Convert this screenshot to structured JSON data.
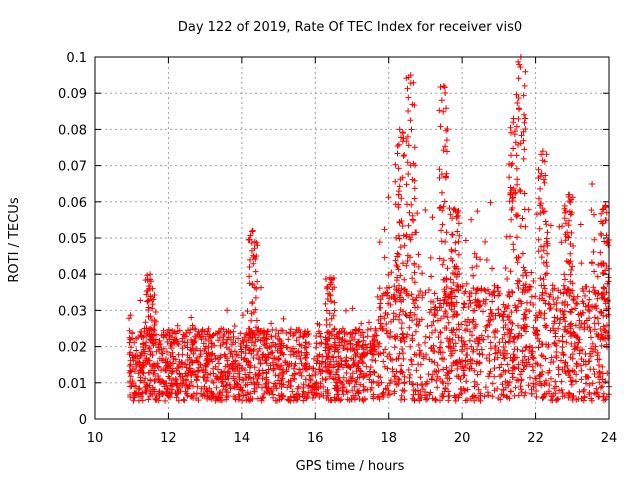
{
  "chart_data": {
    "type": "scatter",
    "title": "Day 122 of 2019, Rate Of TEC Index for receiver vis0",
    "xlabel": "GPS time / hours",
    "ylabel": "ROTI / TECUs",
    "xlim": [
      10,
      24
    ],
    "ylim": [
      0,
      0.1
    ],
    "xticks": [
      10,
      12,
      14,
      16,
      18,
      20,
      22,
      24
    ],
    "xtick_labels": [
      "10",
      "12",
      "14",
      "16",
      "18",
      "20",
      "22",
      "24"
    ],
    "yticks": [
      0,
      0.01,
      0.02,
      0.03,
      0.04,
      0.05,
      0.06,
      0.07,
      0.08,
      0.09,
      0.1
    ],
    "ytick_labels": [
      "0",
      "0.01",
      "0.02",
      "0.03",
      "0.04",
      "0.05",
      "0.06",
      "0.07",
      "0.08",
      "0.09",
      "0.1"
    ],
    "grid": true,
    "marker": "+",
    "color": "#ff0000",
    "series": [
      {
        "name": "ROTI",
        "x_range": [
          10.9,
          24.0
        ],
        "baseline_y": [
          0.005,
          0.025
        ],
        "peaks": [
          {
            "x": 11.5,
            "y": 0.04
          },
          {
            "x": 14.3,
            "y": 0.052
          },
          {
            "x": 16.4,
            "y": 0.039
          },
          {
            "x": 18.3,
            "y": 0.08
          },
          {
            "x": 18.6,
            "y": 0.095
          },
          {
            "x": 19.5,
            "y": 0.092
          },
          {
            "x": 19.8,
            "y": 0.058
          },
          {
            "x": 21.4,
            "y": 0.083
          },
          {
            "x": 21.6,
            "y": 0.1
          },
          {
            "x": 22.2,
            "y": 0.074
          },
          {
            "x": 22.9,
            "y": 0.062
          },
          {
            "x": 23.9,
            "y": 0.059
          }
        ]
      }
    ]
  }
}
